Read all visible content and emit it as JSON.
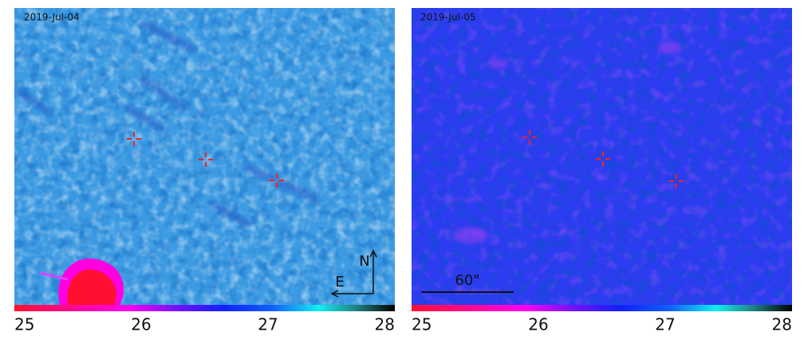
{
  "panels": [
    {
      "label": "2019-Jul-04"
    },
    {
      "label": "2019-Jul-05",
      "scale_bar": "60\""
    }
  ],
  "compass": {
    "north": "N",
    "east": "E"
  },
  "colorbar": {
    "ticks": [
      25,
      26,
      27,
      28
    ]
  }
}
